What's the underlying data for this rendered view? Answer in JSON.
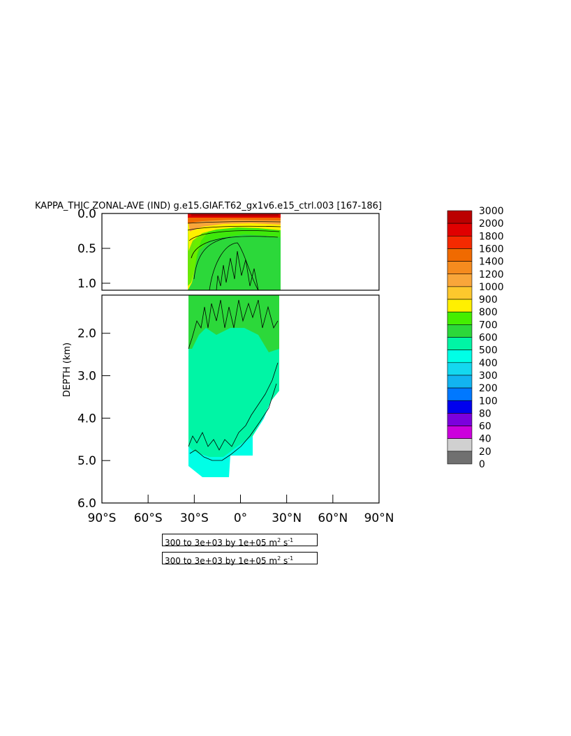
{
  "chart_data": {
    "type": "heatmap",
    "title": "KAPPA_THIC ZONAL-AVE (IND) g.e15.GIAF.T62_gx1v6.e15_ctrl.003 [167-186]",
    "ylabel": "DEPTH (km)",
    "xlabel": "",
    "x_ticks": [
      "90°S",
      "60°S",
      "30°S",
      "0°",
      "30°N",
      "60°N",
      "90°N"
    ],
    "x_tick_values": [
      -90,
      -60,
      -30,
      0,
      30,
      60,
      90
    ],
    "xlim": [
      -90,
      90
    ],
    "upper_panel": {
      "ylim": [
        0.0,
        1.1
      ],
      "y_ticks": [
        "0.0",
        "0.5",
        "1.0"
      ],
      "y_tick_values": [
        0.0,
        0.5,
        1.0
      ]
    },
    "lower_panel": {
      "ylim": [
        1.1,
        6.0
      ],
      "y_ticks": [
        "2.0",
        "3.0",
        "4.0",
        "5.0",
        "6.0"
      ],
      "y_tick_values": [
        2.0,
        3.0,
        4.0,
        5.0,
        6.0
      ]
    },
    "colorbar": {
      "labels": [
        "3000",
        "2000",
        "1800",
        "1600",
        "1400",
        "1200",
        "1000",
        "900",
        "800",
        "700",
        "600",
        "500",
        "400",
        "300",
        "200",
        "100",
        "80",
        "60",
        "40",
        "20",
        "0"
      ],
      "colors": [
        "#bb0000",
        "#e00000",
        "#f52a00",
        "#f06a00",
        "#f58b1e",
        "#f9a63a",
        "#fdc82d",
        "#fff000",
        "#44ee00",
        "#2cd83a",
        "#00f5a5",
        "#00ffe6",
        "#14d8ef",
        "#12b4f0",
        "#0078ff",
        "#0000ee",
        "#7b00dd",
        "#cc00dd",
        "#d0d0d0",
        "#707070"
      ]
    },
    "approx_fields": [
      {
        "region": "surface layer 0-0.1 km, 35°S-25°N",
        "value_range": [
          2000,
          3000
        ]
      },
      {
        "region": "upper ocean 0.1-1.1 km",
        "value_range": [
          700,
          1200
        ]
      },
      {
        "region": "1.1-2.5 km",
        "value_range": [
          600,
          700
        ]
      },
      {
        "region": "2.5-5.0 km",
        "value_range": [
          500,
          600
        ]
      },
      {
        "region": "bottom 4.5-5.4 km",
        "value_range": [
          400,
          500
        ]
      }
    ],
    "notes": [
      {
        "text": "300 to 3e+03 by 1e+05 m",
        "sup1": "2",
        "mid": " s",
        "sup2": "-1"
      },
      {
        "text": "300 to 3e+03 by 1e+05 m",
        "sup1": "2",
        "mid": " s",
        "sup2": "-1"
      }
    ]
  }
}
